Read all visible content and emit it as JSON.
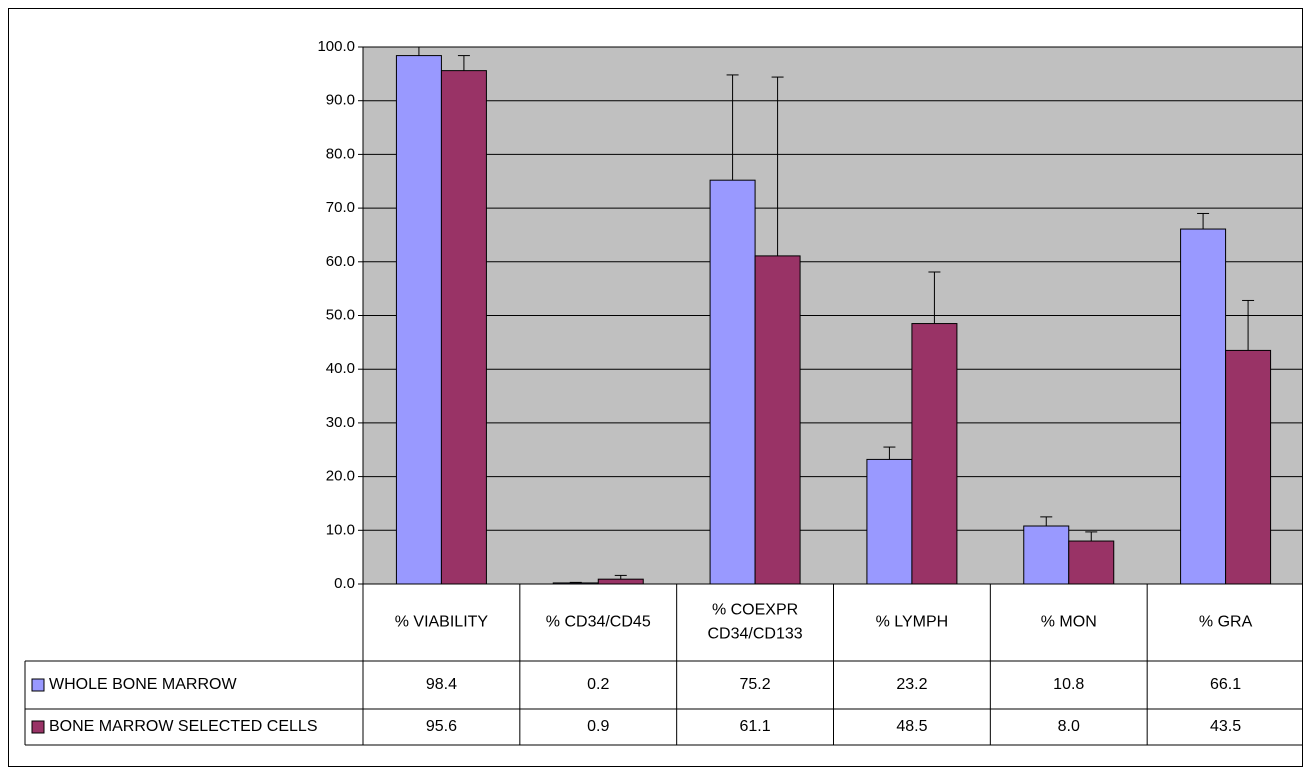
{
  "chart_data": {
    "type": "bar",
    "title": "",
    "xlabel": "",
    "ylabel": "",
    "ylim": [
      0,
      100
    ],
    "yticks": [
      0,
      10,
      20,
      30,
      40,
      50,
      60,
      70,
      80,
      90,
      100
    ],
    "ytick_labels": [
      "0.0",
      "10.0",
      "20.0",
      "30.0",
      "40.0",
      "50.0",
      "60.0",
      "70.0",
      "80.0",
      "90.0",
      "100.0"
    ],
    "grid": true,
    "legend": "data-table",
    "categories": [
      [
        "% VIABILITY"
      ],
      [
        "% CD34/CD45"
      ],
      [
        "% COEXPR",
        "CD34/CD133"
      ],
      [
        "% LYMPH"
      ],
      [
        "% MON"
      ],
      [
        "% GRA"
      ]
    ],
    "series": [
      {
        "name": "WHOLE BONE MARROW",
        "color": "#9999ff",
        "values": [
          98.4,
          0.2,
          75.2,
          23.2,
          10.8,
          66.1
        ],
        "value_labels": [
          "98.4",
          "0.2",
          "75.2",
          "23.2",
          "10.8",
          "66.1"
        ],
        "error": [
          1.6,
          0.1,
          19.6,
          2.3,
          1.7,
          2.9
        ]
      },
      {
        "name": "BONE MARROW SELECTED CELLS",
        "color": "#993366",
        "values": [
          95.6,
          0.9,
          61.1,
          48.5,
          8.0,
          43.5
        ],
        "value_labels": [
          "95.6",
          "0.9",
          "61.1",
          "48.5",
          "8.0",
          "43.5"
        ],
        "error": [
          2.8,
          0.7,
          33.3,
          9.6,
          1.7,
          9.3
        ]
      }
    ]
  }
}
